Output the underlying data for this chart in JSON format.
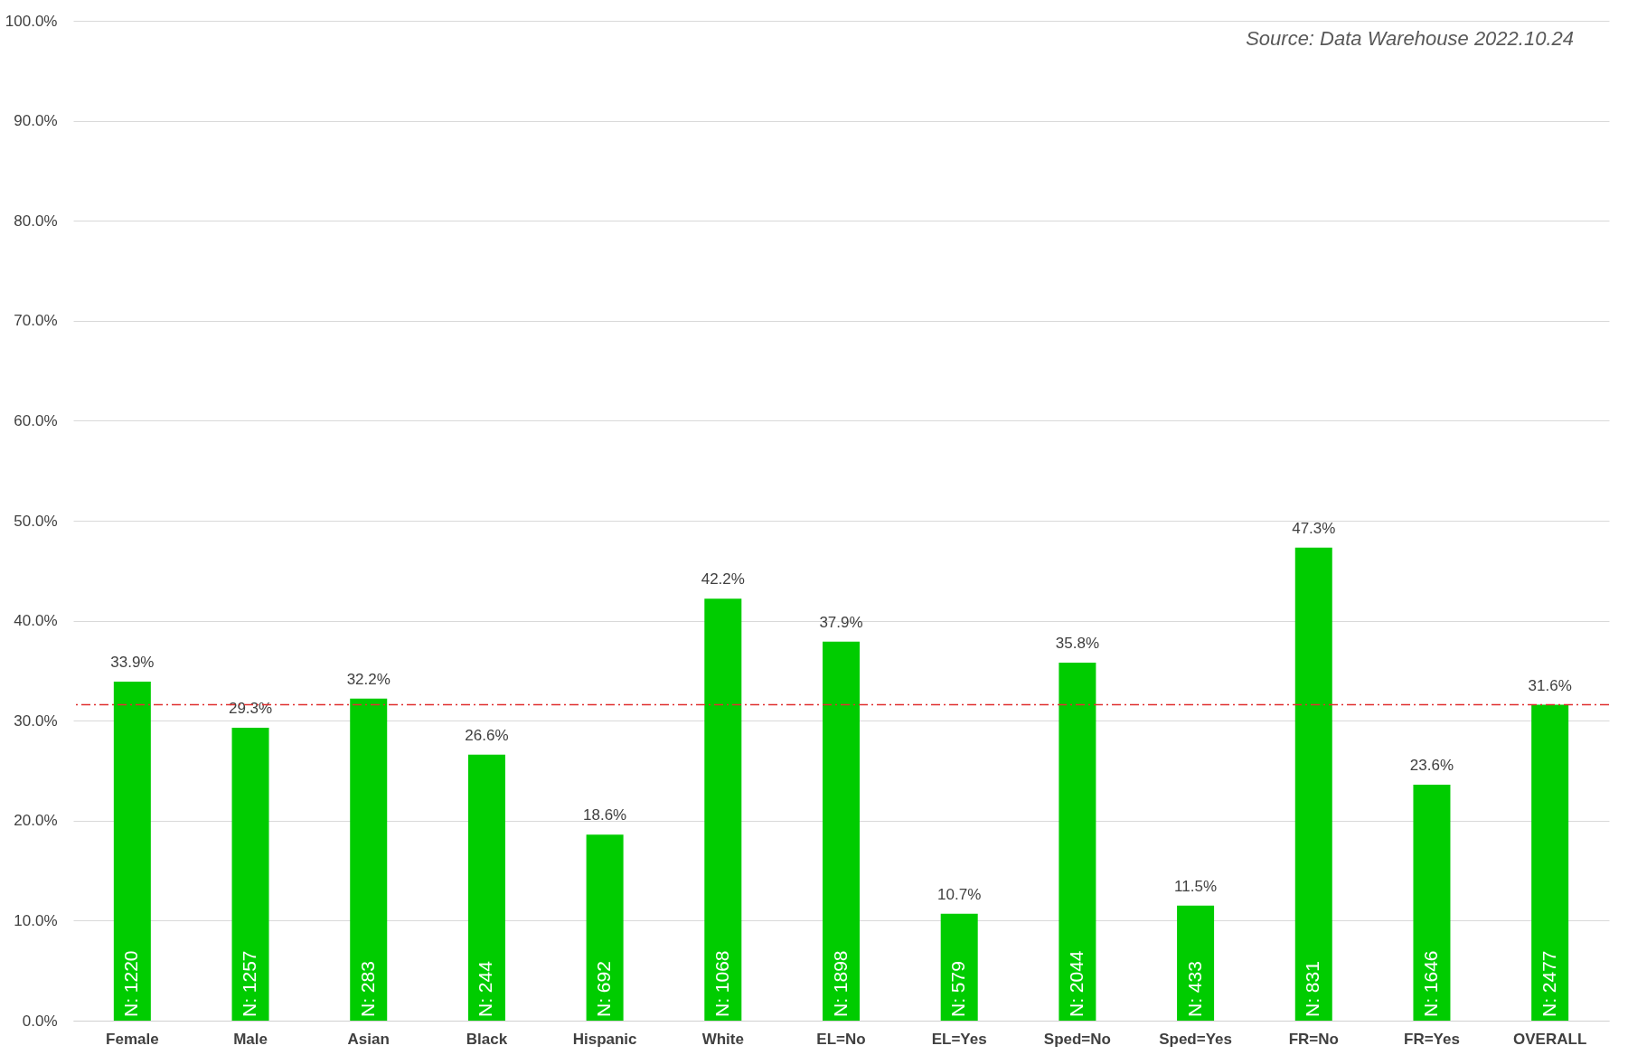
{
  "chart_data": {
    "type": "bar",
    "categories": [
      "Female",
      "Male",
      "Asian",
      "Black",
      "Hispanic",
      "White",
      "EL=No",
      "EL=Yes",
      "Sped=No",
      "Sped=Yes",
      "FR=No",
      "FR=Yes",
      "OVERALL"
    ],
    "values": [
      33.9,
      29.3,
      32.2,
      26.6,
      18.6,
      42.2,
      37.9,
      10.7,
      35.8,
      11.5,
      47.3,
      23.6,
      31.6
    ],
    "value_labels": [
      "33.9%",
      "29.3%",
      "32.2%",
      "26.6%",
      "18.6%",
      "42.2%",
      "37.9%",
      "10.7%",
      "35.8%",
      "11.5%",
      "47.3%",
      "23.6%",
      "31.6%"
    ],
    "color": "#00cc00",
    "ylim": [
      0,
      100
    ],
    "yticks": [
      {
        "value": 0,
        "label": "0.0%"
      },
      {
        "value": 10,
        "label": "10.0%"
      },
      {
        "value": 20,
        "label": "20.0%"
      },
      {
        "value": 30,
        "label": "30.0%"
      },
      {
        "value": 40,
        "label": "40.0%"
      },
      {
        "value": 50,
        "label": "50.0%"
      },
      {
        "value": 60,
        "label": "60.0%"
      },
      {
        "value": 70,
        "label": "70.0%"
      },
      {
        "value": 80,
        "label": "80.0%"
      },
      {
        "value": 90,
        "label": "90.0%"
      },
      {
        "value": 100,
        "label": "100.0%"
      }
    ],
    "grid": "y",
    "ref_lines": [
      {
        "axis": "y",
        "value": 31.6,
        "color": "#e03030",
        "line_style": "dashed"
      }
    ],
    "annotations": [
      "Source: Data Warehouse 2022.10.24",
      {
        "text": "N: 1220",
        "x": "Female",
        "y": 0
      },
      {
        "text": "N: 1257",
        "x": "Male",
        "y": 0
      },
      {
        "text": "N: 283",
        "x": "Asian",
        "y": 0
      },
      {
        "text": "N: 244",
        "x": "Black",
        "y": 0
      },
      {
        "text": "N: 692",
        "x": "Hispanic",
        "y": 0
      },
      {
        "text": "N: 1068",
        "x": "White",
        "y": 0
      },
      {
        "text": "N: 1898",
        "x": "EL=No",
        "y": 0
      },
      {
        "text": "N: 579",
        "x": "EL=Yes",
        "y": 0
      },
      {
        "text": "N: 2044",
        "x": "Sped=No",
        "y": 0
      },
      {
        "text": "N: 433",
        "x": "Sped=Yes",
        "y": 0
      },
      {
        "text": "N: 831",
        "x": "FR=No",
        "y": 0
      },
      {
        "text": "N: 1646",
        "x": "FR=Yes",
        "y": 0
      },
      {
        "text": "N: 2477",
        "x": "OVERALL",
        "y": 0
      }
    ]
  }
}
